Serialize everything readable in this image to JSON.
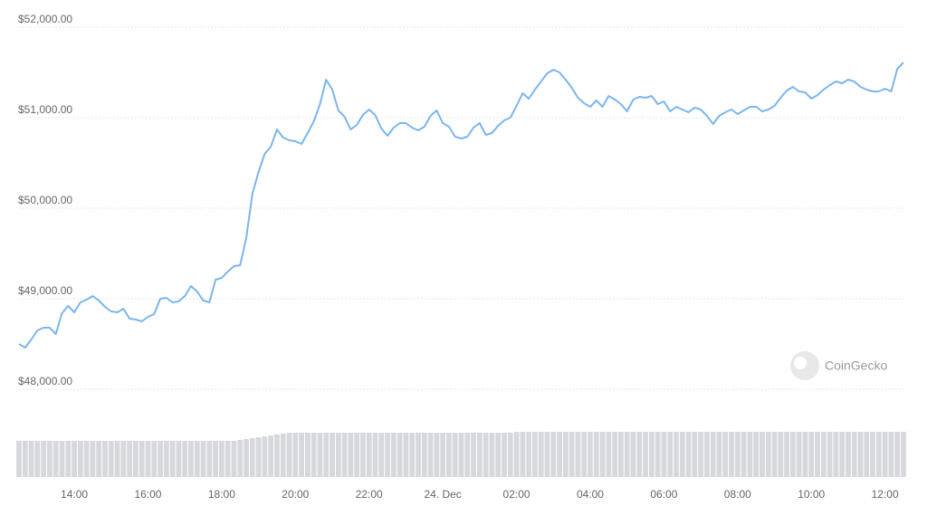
{
  "chart_data": {
    "type": "line",
    "watermark": "CoinGecko",
    "categories": [
      null,
      null,
      null,
      null,
      null,
      null,
      null,
      null,
      null,
      "14:00",
      null,
      null,
      null,
      null,
      null,
      null,
      null,
      null,
      null,
      null,
      null,
      "16:00",
      null,
      null,
      null,
      null,
      null,
      null,
      null,
      null,
      null,
      null,
      null,
      "18:00",
      null,
      null,
      null,
      null,
      null,
      null,
      null,
      null,
      null,
      null,
      null,
      "20:00",
      null,
      null,
      null,
      null,
      null,
      null,
      null,
      null,
      null,
      null,
      null,
      "22:00",
      null,
      null,
      null,
      null,
      null,
      null,
      null,
      null,
      null,
      null,
      null,
      "24. Dec",
      null,
      null,
      null,
      null,
      null,
      null,
      null,
      null,
      null,
      null,
      null,
      "02:00",
      null,
      null,
      null,
      null,
      null,
      null,
      null,
      null,
      null,
      null,
      null,
      "04:00",
      null,
      null,
      null,
      null,
      null,
      null,
      null,
      null,
      null,
      null,
      null,
      "06:00",
      null,
      null,
      null,
      null,
      null,
      null,
      null,
      null,
      null,
      null,
      null,
      "08:00",
      null,
      null,
      null,
      null,
      null,
      null,
      null,
      null,
      null,
      null,
      null,
      "10:00",
      null,
      null,
      null,
      null,
      null,
      null,
      null,
      null,
      null,
      null,
      null,
      "12:00",
      null,
      null,
      null
    ],
    "series": [
      {
        "color": "#7cb5ec",
        "values": [
          48500,
          48460,
          48550,
          48650,
          48680,
          48680,
          48610,
          48840,
          48920,
          48850,
          48960,
          48990,
          49030,
          48980,
          48910,
          48860,
          48850,
          48890,
          48780,
          48770,
          48750,
          48800,
          48830,
          49000,
          49010,
          48960,
          48970,
          49030,
          49140,
          49080,
          48980,
          48960,
          49210,
          49230,
          49300,
          49360,
          49370,
          49670,
          50160,
          50400,
          50600,
          50680,
          50870,
          50780,
          50750,
          50740,
          50710,
          50830,
          50960,
          51150,
          51420,
          51310,
          51080,
          51010,
          50870,
          50920,
          51030,
          51090,
          51030,
          50880,
          50800,
          50890,
          50940,
          50940,
          50890,
          50860,
          50900,
          51020,
          51080,
          50940,
          50900,
          50790,
          50770,
          50790,
          50890,
          50940,
          50810,
          50830,
          50910,
          50970,
          51000,
          51130,
          51270,
          51210,
          51310,
          51400,
          51490,
          51530,
          51500,
          51420,
          51330,
          51220,
          51160,
          51120,
          51190,
          51120,
          51240,
          51200,
          51150,
          51070,
          51200,
          51230,
          51220,
          51240,
          51150,
          51180,
          51070,
          51120,
          51090,
          51060,
          51110,
          51090,
          51020,
          50930,
          51020,
          51060,
          51090,
          51040,
          51080,
          51120,
          51120,
          51070,
          51090,
          51130,
          51220,
          51300,
          51340,
          51290,
          51280,
          51210,
          51250,
          51310,
          51360,
          51400,
          51380,
          51420,
          51400,
          51340,
          51310,
          51290,
          51290,
          51320,
          51290,
          51540,
          51610
        ]
      },
      {
        "type": "bar",
        "axis": "y2",
        "color": "#d6d8db",
        "values": [
          40,
          40,
          40,
          40,
          40,
          40,
          40,
          40,
          40,
          40,
          40,
          40,
          40,
          40,
          40,
          40,
          40,
          40,
          40,
          40,
          40,
          40,
          40,
          40,
          40,
          40,
          40,
          40,
          40,
          40,
          40,
          40,
          40,
          40,
          40,
          40,
          41,
          42,
          43,
          44,
          45,
          46,
          47,
          48,
          49,
          49,
          49,
          49,
          49,
          49,
          49,
          49,
          49,
          49,
          49,
          49,
          49,
          49,
          49,
          49,
          49,
          49,
          49,
          49,
          49,
          49,
          49,
          49,
          49,
          49,
          49,
          49,
          49,
          49,
          49,
          49,
          49,
          49,
          49,
          49,
          49,
          50,
          50,
          50,
          50,
          50,
          50,
          50,
          50,
          50,
          50,
          50,
          50,
          50,
          50,
          50,
          50,
          50,
          50,
          50,
          50,
          50,
          50,
          50,
          50,
          50,
          50,
          50,
          50,
          50,
          50,
          50,
          50,
          50,
          50,
          50,
          50,
          50,
          50,
          50,
          50,
          50,
          50,
          50,
          50,
          50,
          50,
          50,
          50,
          50,
          50,
          50,
          50,
          50,
          50,
          50,
          50,
          50,
          50,
          50,
          50,
          50,
          50,
          50,
          50
        ]
      }
    ],
    "ylim": [
      47900,
      52000
    ],
    "yticks": [
      {
        "value": 48000,
        "label": "$48,000.00"
      },
      {
        "value": 49000,
        "label": "$49,000.00"
      },
      {
        "value": 50000,
        "label": "$50,000.00"
      },
      {
        "value": 51000,
        "label": "$51,000.00"
      },
      {
        "value": 52000,
        "label": "$52,000.00"
      }
    ],
    "y2lim": [
      0,
      50
    ],
    "grid": true
  }
}
